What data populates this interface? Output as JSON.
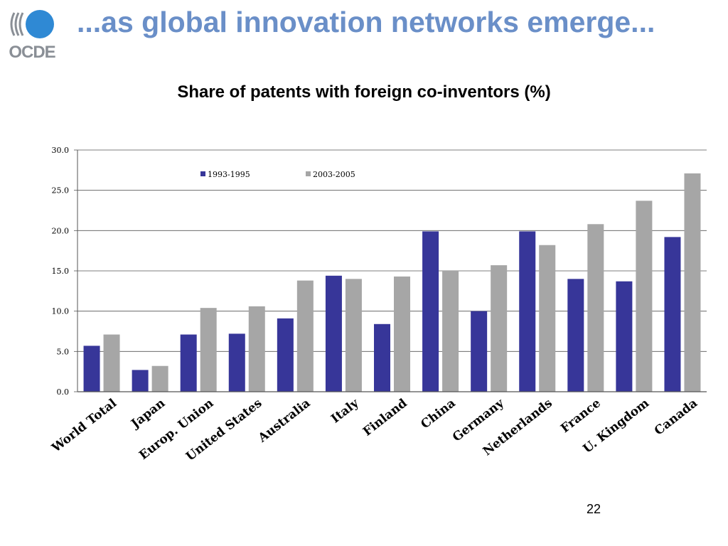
{
  "slide": {
    "title": "...as global innovation networks emerge...",
    "page_number": "22",
    "logo_text": "OCDE"
  },
  "colors": {
    "series1": "#373699",
    "series2": "#a6a6a6",
    "title": "#6a8fc8",
    "logo": "#2f89d4"
  },
  "chart_data": {
    "type": "bar",
    "title": "Share of patents with foreign co-inventors (%)",
    "xlabel": "",
    "ylabel": "",
    "ylim": [
      0,
      30
    ],
    "yticks": [
      "0.0",
      "5.0",
      "10.0",
      "15.0",
      "20.0",
      "25.0",
      "30.0"
    ],
    "grid": true,
    "legend_position": "top-center",
    "categories": [
      "World Total",
      "Japan",
      "Europ. Union",
      "United States",
      "Australia",
      "Italy",
      "Finland",
      "China",
      "Germany",
      "Netherlands",
      "France",
      "U. Kingdom",
      "Canada"
    ],
    "series": [
      {
        "name": "1993-1995",
        "values": [
          5.7,
          2.7,
          7.1,
          7.2,
          9.1,
          14.4,
          8.4,
          19.9,
          10.0,
          19.9,
          14.0,
          13.7,
          19.2
        ]
      },
      {
        "name": "2003-2005",
        "values": [
          7.1,
          3.2,
          10.4,
          10.6,
          13.8,
          14.0,
          14.3,
          15.0,
          15.7,
          18.2,
          20.8,
          23.7,
          27.1
        ]
      }
    ]
  }
}
